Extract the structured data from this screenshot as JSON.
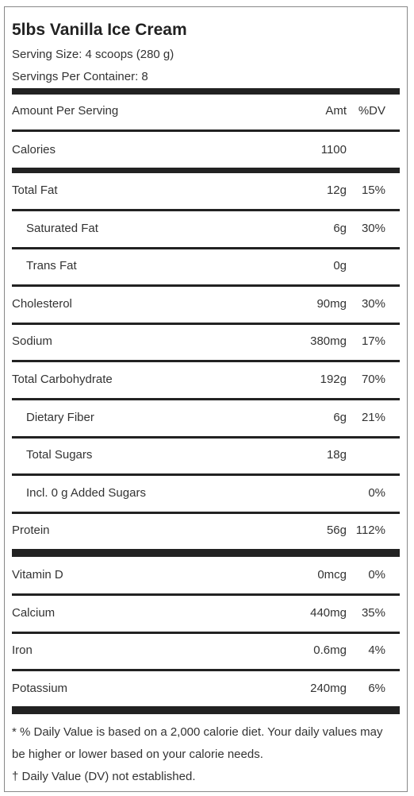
{
  "title": "5lbs Vanilla Ice Cream",
  "serving_size": "Serving Size: 4 scoops (280 g)",
  "servings_per_container": "Servings Per Container: 8",
  "header": {
    "label": "Amount Per Serving",
    "amount": "Amt",
    "dv": "%DV"
  },
  "calories": {
    "name": "Calories",
    "amount": "1100"
  },
  "rows": [
    {
      "name": "Total Fat",
      "amount": "12g",
      "dv": "15%"
    },
    {
      "name": "Saturated Fat",
      "amount": "6g",
      "dv": "30%"
    },
    {
      "name": "Trans Fat",
      "amount": "0g"
    },
    {
      "name": "Cholesterol",
      "amount": "90mg",
      "dv": "30%"
    },
    {
      "name": "Sodium",
      "amount": "380mg",
      "dv": "17%"
    },
    {
      "name": "Total Carbohydrate",
      "amount": "192g",
      "dv": "70%"
    },
    {
      "name": "Dietary Fiber",
      "amount": "6g",
      "dv": "21%"
    },
    {
      "name": "Total Sugars",
      "amount": "18g"
    },
    {
      "name": "Incl. 0 g Added Sugars",
      "dv": "0%"
    },
    {
      "name": "Protein",
      "amount": "56g",
      "dv": "112%"
    },
    {
      "name": "Vitamin D",
      "amount": "0mcg",
      "dv": "0%"
    },
    {
      "name": "Calcium",
      "amount": "440mg",
      "dv": "35%"
    },
    {
      "name": "Iron",
      "amount": "0.6mg",
      "dv": "4%"
    },
    {
      "name": "Potassium",
      "amount": "240mg",
      "dv": "6%"
    }
  ],
  "footnotes": [
    "* % Daily Value is based on a 2,000 calorie diet. Your daily values may be higher or lower based on your calorie needs.",
    "† Daily Value (DV) not established."
  ]
}
